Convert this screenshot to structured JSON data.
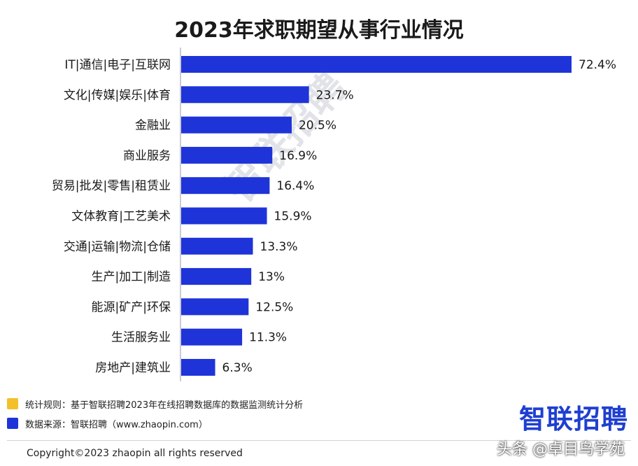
{
  "chart_data": {
    "type": "bar",
    "title": "2023年求职期望从事行业情况",
    "categories": [
      "IT|通信|电子|互联网",
      "文化|传媒|娱乐|体育",
      "金融业",
      "商业服务",
      "贸易|批发|零售|租赁业",
      "文体教育|工艺美术",
      "交通|运输|物流|仓储",
      "生产|加工|制造",
      "能源|矿产|环保",
      "生活服务业",
      "房地产|建筑业"
    ],
    "values": [
      72.4,
      23.7,
      20.5,
      16.9,
      16.4,
      15.9,
      13.3,
      13,
      12.5,
      11.3,
      6.3
    ],
    "value_labels": [
      "72.4%",
      "23.7%",
      "20.5%",
      "16.9%",
      "16.4%",
      "15.9%",
      "13.3%",
      "13%",
      "12.5%",
      "11.3%",
      "6.3%"
    ],
    "xlim": [
      0,
      80
    ],
    "orientation": "horizontal",
    "grid": false,
    "colors": {
      "bar": "#1e34d8",
      "axis": "#b9bcc4"
    }
  },
  "notes": {
    "rule_label": "统计规则：基于智联招聘2023年在线招聘数据库的数据监测统计分析",
    "source_label": "数据来源：智联招聘（www.zhaopin.com）",
    "rule_color": "#f4c02a",
    "source_color": "#1e34d8"
  },
  "logo": {
    "text": "智联招聘"
  },
  "watermark": {
    "text": "智联招聘"
  },
  "footer": {
    "copyright": "Copyright©2023 zhaopin all rights reserved",
    "toutiao": "头条 @卓目鸟学苑"
  }
}
